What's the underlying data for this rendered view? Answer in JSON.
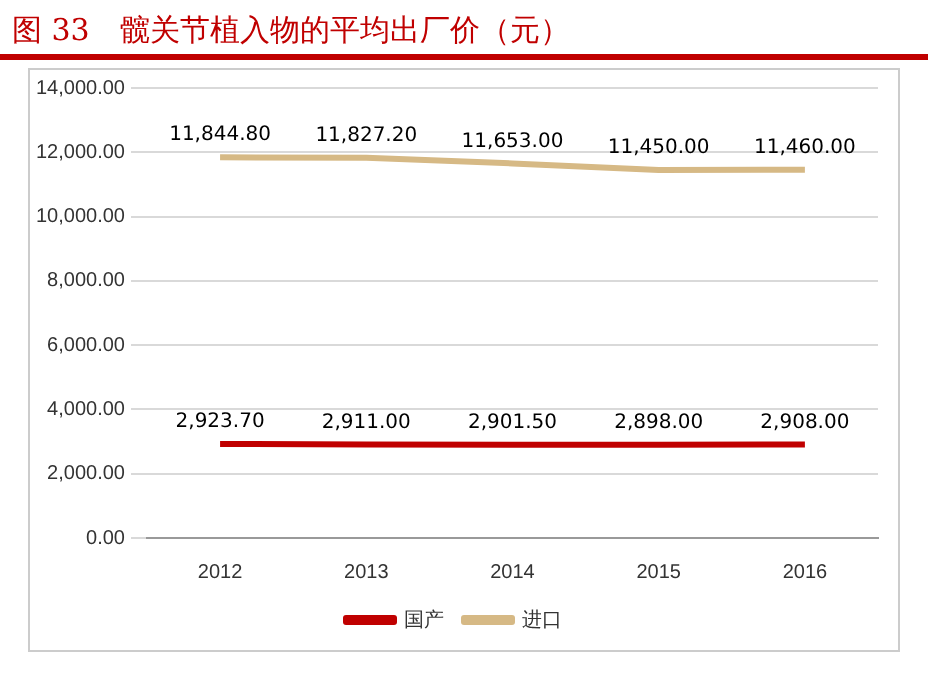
{
  "chart_data": {
    "type": "line",
    "title": "图 33　髋关节植入物的平均出厂价（元）",
    "categories": [
      "2012",
      "2013",
      "2014",
      "2015",
      "2016"
    ],
    "series": [
      {
        "name": "国产",
        "color": "#c00000",
        "values": [
          2923.7,
          2911.0,
          2901.5,
          2898.0,
          2908.0
        ],
        "value_labels": [
          "2,923.70",
          "2,911.00",
          "2,901.50",
          "2,898.00",
          "2,908.00"
        ]
      },
      {
        "name": "进口",
        "color": "#d6b985",
        "values": [
          11844.8,
          11827.2,
          11653.0,
          11450.0,
          11460.0
        ],
        "value_labels": [
          "11,844.80",
          "11,827.20",
          "11,653.00",
          "11,450.00",
          "11,460.00"
        ]
      }
    ],
    "ylim": [
      0,
      14000
    ],
    "yticks": [
      {
        "value": 0,
        "label": "0.00"
      },
      {
        "value": 2000,
        "label": "2,000.00"
      },
      {
        "value": 4000,
        "label": "4,000.00"
      },
      {
        "value": 6000,
        "label": "6,000.00"
      },
      {
        "value": 8000,
        "label": "8,000.00"
      },
      {
        "value": 10000,
        "label": "10,000.00"
      },
      {
        "value": 12000,
        "label": "12,000.00"
      },
      {
        "value": 14000,
        "label": "14,000.00"
      }
    ],
    "grid": "y",
    "legend": "bottom",
    "marker": "none",
    "line_style": "solid"
  }
}
